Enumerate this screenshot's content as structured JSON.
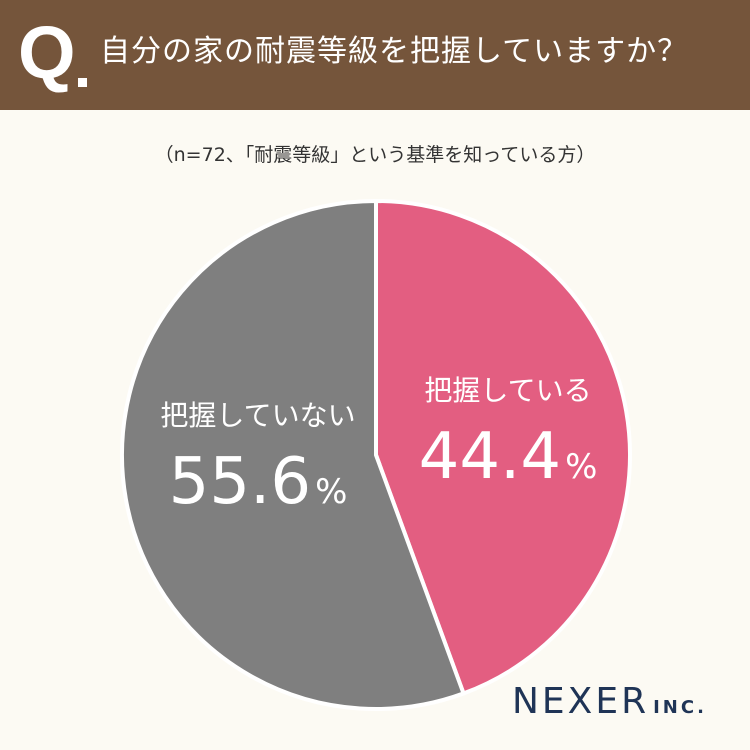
{
  "header": {
    "q_mark": "Q",
    "question": "自分の家の耐震等級を把握していますか？"
  },
  "subtitle": "（n=72、「耐震等級」という基準を知っている方）",
  "colors": {
    "header_bg": "#75553b",
    "page_bg": "#fcfaf3",
    "aware": "#e35e81",
    "not_aware": "#7f7f7f",
    "logo": "#1f3456"
  },
  "chart_data": {
    "type": "pie",
    "slices": [
      {
        "label": "把握している",
        "value": 44.4,
        "display": "44.4",
        "unit": "%",
        "color": "#e35e81"
      },
      {
        "label": "把握していない",
        "value": 55.6,
        "display": "55.6",
        "unit": "%",
        "color": "#7f7f7f"
      }
    ],
    "start": "12 o'clock",
    "direction": "clockwise"
  },
  "logo": {
    "main": "NEXER",
    "sub": "INC."
  }
}
